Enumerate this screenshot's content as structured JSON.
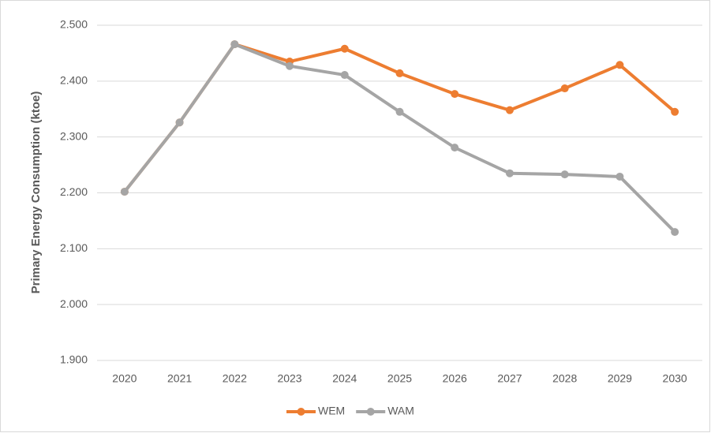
{
  "chart_data": {
    "type": "line",
    "y_label": "Primary Energy Consumption (ktoe)",
    "categories": [
      "2020",
      "2021",
      "2022",
      "2023",
      "2024",
      "2025",
      "2026",
      "2027",
      "2028",
      "2029",
      "2030"
    ],
    "series": [
      {
        "name": "WEM",
        "color": "#ed7d31",
        "values": [
          2202,
          2326,
          2466,
          2435,
          2458,
          2414,
          2377,
          2348,
          2387,
          2429,
          2345
        ]
      },
      {
        "name": "WAM",
        "color": "#a5a5a5",
        "values": [
          2202,
          2326,
          2466,
          2427,
          2411,
          2345,
          2281,
          2235,
          2233,
          2229,
          2130
        ]
      }
    ],
    "ylim": [
      1900,
      2500
    ],
    "yticks": [
      {
        "value": 1900,
        "label": "1.900"
      },
      {
        "value": 2000,
        "label": "2.000"
      },
      {
        "value": 2100,
        "label": "2.100"
      },
      {
        "value": 2200,
        "label": "2.200"
      },
      {
        "value": 2300,
        "label": "2.300"
      },
      {
        "value": 2400,
        "label": "2.400"
      },
      {
        "value": 2500,
        "label": "2.500"
      }
    ],
    "grid": true,
    "legend": "bottom"
  }
}
